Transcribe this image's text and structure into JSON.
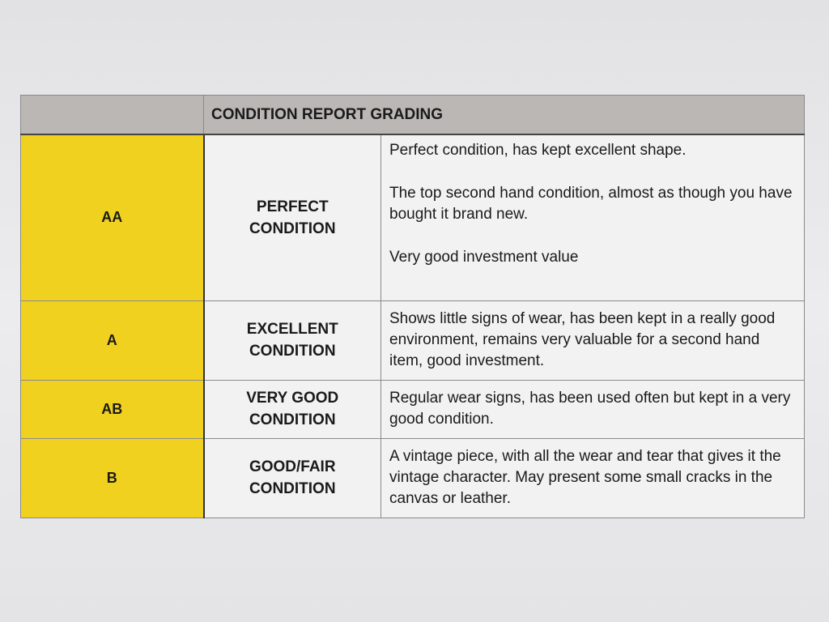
{
  "header": {
    "title": "CONDITION REPORT GRADING"
  },
  "table": {
    "rows": [
      {
        "grade": "AA",
        "condition": "PERFECT CONDITION",
        "description": [
          "Perfect condition, has kept excellent shape.",
          "The top second hand condition, almost as though you have bought it brand new.",
          "Very good investment value"
        ]
      },
      {
        "grade": "A",
        "condition": "EXCELLENT CONDITION",
        "description": [
          "Shows little signs of wear, has been kept in a really good environment, remains very valuable for a second hand item, good investment."
        ]
      },
      {
        "grade": "AB",
        "condition": "VERY GOOD CONDITION",
        "description": [
          "Regular wear signs, has been used often but kept in a very good condition."
        ]
      },
      {
        "grade": "B",
        "condition": "GOOD/FAIR CONDITION",
        "description": [
          "A vintage piece, with all the wear and tear that gives it the vintage character. May present some small cracks in the canvas or leather."
        ]
      }
    ]
  }
}
